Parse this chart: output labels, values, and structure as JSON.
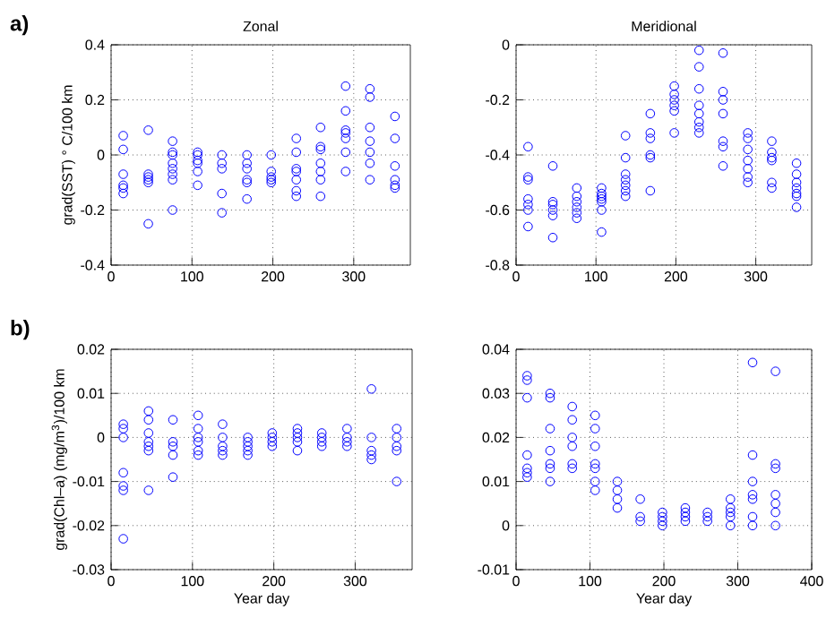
{
  "chart_data": [
    {
      "type": "scatter",
      "title": "Zonal",
      "ylabel": "grad(SST) ° C/100 km",
      "annotations": [
        "**a)**"
      ],
      "marker": "circle",
      "grid": true,
      "xlim": [
        0,
        370
      ],
      "xticks": [
        0,
        100,
        200,
        300
      ],
      "ylim": [
        -0.4,
        0.4
      ],
      "yticks": [
        -0.4,
        -0.2,
        0,
        0.2,
        0.4
      ],
      "series": [
        {
          "color": "#0000ff",
          "x": [
            15,
            15,
            15,
            15,
            15,
            15,
            46,
            46,
            46,
            46,
            46,
            46,
            76,
            76,
            76,
            76,
            76,
            76,
            76,
            76,
            107,
            107,
            107,
            107,
            107,
            107,
            137,
            137,
            137,
            137,
            137,
            168,
            168,
            168,
            168,
            168,
            168,
            198,
            198,
            198,
            198,
            198,
            229,
            229,
            229,
            229,
            229,
            229,
            229,
            259,
            259,
            259,
            259,
            259,
            259,
            259,
            290,
            290,
            290,
            290,
            290,
            290,
            290,
            320,
            320,
            320,
            320,
            320,
            320,
            320,
            351,
            351,
            351,
            351,
            351,
            351
          ],
          "values": [
            0.07,
            0.02,
            -0.07,
            -0.11,
            -0.12,
            -0.14,
            0.09,
            -0.07,
            -0.08,
            -0.09,
            -0.1,
            -0.25,
            0.05,
            0.01,
            0.0,
            -0.03,
            -0.05,
            -0.07,
            -0.09,
            -0.2,
            0.01,
            0.0,
            -0.02,
            -0.03,
            -0.06,
            -0.11,
            0.0,
            -0.03,
            -0.05,
            -0.14,
            -0.21,
            0.0,
            -0.03,
            -0.05,
            -0.09,
            -0.1,
            -0.16,
            0.0,
            -0.06,
            -0.08,
            -0.09,
            -0.1,
            0.06,
            0.01,
            -0.05,
            -0.06,
            -0.09,
            -0.13,
            -0.15,
            0.1,
            0.03,
            0.02,
            -0.03,
            -0.06,
            -0.09,
            -0.15,
            0.25,
            0.16,
            0.09,
            0.08,
            0.06,
            0.01,
            -0.06,
            0.24,
            0.21,
            0.1,
            0.05,
            0.01,
            -0.03,
            -0.09,
            0.14,
            0.06,
            -0.04,
            -0.09,
            -0.11,
            -0.12
          ]
        }
      ]
    },
    {
      "type": "scatter",
      "title": "Meridional",
      "marker": "circle",
      "grid": true,
      "xlim": [
        0,
        370
      ],
      "xticks": [
        0,
        100,
        200,
        300
      ],
      "ylim": [
        -0.8,
        0
      ],
      "yticks": [
        -0.8,
        -0.6,
        -0.4,
        -0.2,
        0
      ],
      "series": [
        {
          "color": "#0000ff",
          "x": [
            15,
            15,
            15,
            15,
            15,
            15,
            15,
            46,
            46,
            46,
            46,
            46,
            46,
            76,
            76,
            76,
            76,
            76,
            76,
            107,
            107,
            107,
            107,
            107,
            107,
            107,
            137,
            137,
            137,
            137,
            137,
            137,
            137,
            168,
            168,
            168,
            168,
            168,
            168,
            198,
            198,
            198,
            198,
            198,
            198,
            229,
            229,
            229,
            229,
            229,
            229,
            229,
            229,
            259,
            259,
            259,
            259,
            259,
            259,
            259,
            290,
            290,
            290,
            290,
            290,
            290,
            290,
            320,
            320,
            320,
            320,
            320,
            320,
            351,
            351,
            351,
            351,
            351,
            351,
            351
          ],
          "values": [
            -0.37,
            -0.48,
            -0.49,
            -0.56,
            -0.58,
            -0.6,
            -0.66,
            -0.44,
            -0.57,
            -0.58,
            -0.6,
            -0.62,
            -0.7,
            -0.52,
            -0.55,
            -0.57,
            -0.59,
            -0.61,
            -0.63,
            -0.52,
            -0.54,
            -0.55,
            -0.56,
            -0.57,
            -0.6,
            -0.68,
            -0.33,
            -0.41,
            -0.47,
            -0.49,
            -0.51,
            -0.53,
            -0.55,
            -0.25,
            -0.32,
            -0.34,
            -0.4,
            -0.41,
            -0.53,
            -0.15,
            -0.18,
            -0.2,
            -0.22,
            -0.24,
            -0.32,
            -0.02,
            -0.08,
            -0.16,
            -0.22,
            -0.25,
            -0.28,
            -0.3,
            -0.32,
            -0.03,
            -0.17,
            -0.2,
            -0.25,
            -0.35,
            -0.37,
            -0.44,
            -0.32,
            -0.34,
            -0.38,
            -0.42,
            -0.45,
            -0.48,
            -0.5,
            -0.35,
            -0.39,
            -0.41,
            -0.42,
            -0.5,
            -0.52,
            -0.43,
            -0.47,
            -0.5,
            -0.52,
            -0.54,
            -0.55,
            -0.59
          ]
        }
      ]
    },
    {
      "type": "scatter",
      "xlabel": "Year day",
      "ylabel": "grad(Chl–a)  (mg/m$^{3}$)/100 km",
      "annotations": [
        "**b)**"
      ],
      "marker": "circle",
      "grid": true,
      "xlim": [
        0,
        370
      ],
      "xticks": [
        0,
        100,
        200,
        300
      ],
      "ylim": [
        -0.03,
        0.02
      ],
      "yticks": [
        -0.03,
        -0.02,
        -0.01,
        0,
        0.01,
        0.02
      ],
      "series": [
        {
          "color": "#0000ff",
          "x": [
            15,
            15,
            15,
            15,
            15,
            15,
            15,
            46,
            46,
            46,
            46,
            46,
            46,
            46,
            76,
            76,
            76,
            76,
            76,
            107,
            107,
            107,
            107,
            107,
            107,
            137,
            137,
            137,
            137,
            137,
            168,
            168,
            168,
            168,
            168,
            198,
            198,
            198,
            198,
            229,
            229,
            229,
            229,
            229,
            259,
            259,
            259,
            259,
            290,
            290,
            290,
            290,
            320,
            320,
            320,
            320,
            320,
            351,
            351,
            351,
            351,
            351
          ],
          "values": [
            0.003,
            0.002,
            0.0,
            -0.008,
            -0.011,
            -0.012,
            -0.023,
            0.006,
            0.004,
            0.001,
            -0.001,
            -0.002,
            -0.003,
            -0.012,
            0.004,
            -0.001,
            -0.002,
            -0.004,
            -0.009,
            0.005,
            0.002,
            0.0,
            -0.001,
            -0.003,
            -0.004,
            0.003,
            0.0,
            -0.002,
            -0.003,
            -0.004,
            0.0,
            -0.001,
            -0.002,
            -0.003,
            -0.004,
            0.001,
            0.0,
            -0.001,
            -0.002,
            0.002,
            0.001,
            0.0,
            -0.001,
            -0.003,
            0.001,
            0.0,
            -0.001,
            -0.002,
            0.002,
            0.0,
            -0.001,
            -0.002,
            0.011,
            0.0,
            -0.003,
            -0.004,
            -0.005,
            0.002,
            0.0,
            -0.002,
            -0.003,
            -0.01
          ]
        }
      ]
    },
    {
      "type": "scatter",
      "xlabel": "Year day",
      "marker": "circle",
      "grid": true,
      "xlim": [
        0,
        400
      ],
      "xticks": [
        0,
        100,
        200,
        300,
        400
      ],
      "ylim": [
        -0.01,
        0.04
      ],
      "yticks": [
        -0.01,
        0,
        0.01,
        0.02,
        0.03,
        0.04
      ],
      "series": [
        {
          "color": "#0000ff",
          "x": [
            15,
            15,
            15,
            15,
            15,
            15,
            15,
            46,
            46,
            46,
            46,
            46,
            46,
            46,
            76,
            76,
            76,
            76,
            76,
            76,
            107,
            107,
            107,
            107,
            107,
            107,
            107,
            137,
            137,
            137,
            137,
            168,
            168,
            168,
            198,
            198,
            198,
            198,
            229,
            229,
            229,
            229,
            259,
            259,
            259,
            290,
            290,
            290,
            290,
            290,
            320,
            320,
            320,
            320,
            320,
            320,
            320,
            351,
            351,
            351,
            351,
            351,
            351,
            351
          ],
          "values": [
            0.034,
            0.033,
            0.029,
            0.016,
            0.013,
            0.012,
            0.011,
            0.03,
            0.029,
            0.022,
            0.017,
            0.014,
            0.013,
            0.01,
            0.027,
            0.024,
            0.02,
            0.018,
            0.014,
            0.013,
            0.025,
            0.022,
            0.018,
            0.014,
            0.013,
            0.01,
            0.008,
            0.01,
            0.008,
            0.006,
            0.004,
            0.006,
            0.002,
            0.001,
            0.003,
            0.002,
            0.001,
            0.0,
            0.004,
            0.003,
            0.002,
            0.001,
            0.003,
            0.002,
            0.001,
            0.006,
            0.004,
            0.003,
            0.002,
            0.0,
            0.037,
            0.016,
            0.01,
            0.007,
            0.006,
            0.002,
            0.0,
            0.035,
            0.014,
            0.013,
            0.007,
            0.005,
            0.003,
            0.0
          ]
        }
      ]
    }
  ]
}
